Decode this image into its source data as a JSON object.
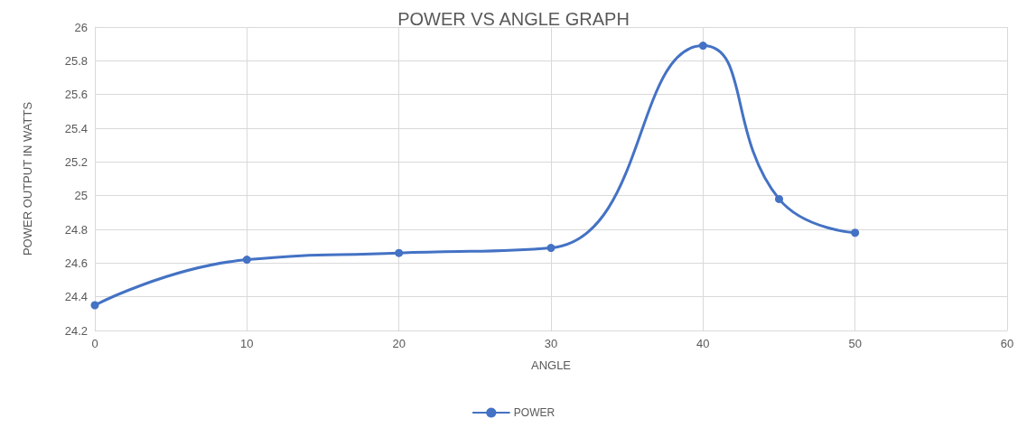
{
  "chart_data": {
    "type": "line",
    "title": "POWER VS ANGLE GRAPH",
    "xlabel": "ANGLE",
    "ylabel": "POWER OUTPUT IN WATTS",
    "x": [
      0,
      10,
      20,
      30,
      40,
      45,
      50
    ],
    "series": [
      {
        "name": "POWER",
        "color": "#4472c4",
        "values": [
          24.35,
          24.62,
          24.66,
          24.69,
          25.89,
          24.98,
          24.78
        ]
      }
    ],
    "xlim": [
      0,
      60
    ],
    "xticks": [
      0,
      10,
      20,
      30,
      40,
      50,
      60
    ],
    "ylim": [
      24.2,
      26
    ],
    "yticks": [
      24.2,
      24.4,
      24.6,
      24.8,
      25,
      25.2,
      25.4,
      25.6,
      25.8,
      26
    ],
    "grid": true,
    "legend": "bottom",
    "marker": "circle",
    "line_style": "solid"
  }
}
